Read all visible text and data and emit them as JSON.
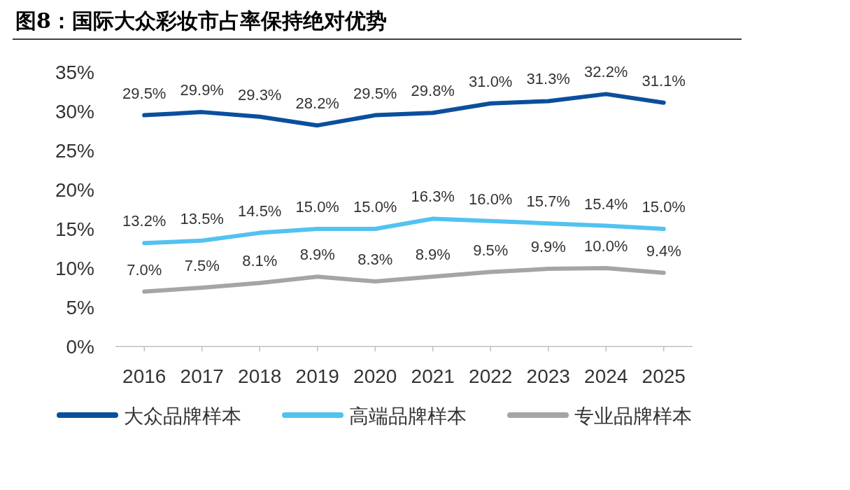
{
  "chart_data": {
    "type": "line",
    "title": "图8：国际大众彩妆市占率保持绝对优势",
    "categories": [
      "2016",
      "2017",
      "2018",
      "2019",
      "2020",
      "2021",
      "2022",
      "2023",
      "2024",
      "2025"
    ],
    "series": [
      {
        "name": "大众品牌样本",
        "color": "#0b4f9c",
        "values": [
          29.5,
          29.9,
          29.3,
          28.2,
          29.5,
          29.8,
          31.0,
          31.3,
          32.2,
          31.1
        ],
        "value_labels": [
          "29.5%",
          "29.9%",
          "29.3%",
          "28.2%",
          "29.5%",
          "29.8%",
          "31.0%",
          "31.3%",
          "32.2%",
          "31.1%"
        ]
      },
      {
        "name": "高端品牌样本",
        "color": "#52c2f0",
        "values": [
          13.2,
          13.5,
          14.5,
          15.0,
          15.0,
          16.3,
          16.0,
          15.7,
          15.4,
          15.0
        ],
        "value_labels": [
          "13.2%",
          "13.5%",
          "14.5%",
          "15.0%",
          "15.0%",
          "16.3%",
          "16.0%",
          "15.7%",
          "15.4%",
          "15.0%"
        ]
      },
      {
        "name": "专业品牌样本",
        "color": "#a5a5a5",
        "values": [
          7.0,
          7.5,
          8.1,
          8.9,
          8.3,
          8.9,
          9.5,
          9.9,
          10.0,
          9.4
        ],
        "value_labels": [
          "7.0%",
          "7.5%",
          "8.1%",
          "8.9%",
          "8.3%",
          "8.9%",
          "9.5%",
          "9.9%",
          "10.0%",
          "9.4%"
        ]
      }
    ],
    "ylim": [
      0,
      35
    ],
    "yticks": [
      {
        "value": 0,
        "label": "0%"
      },
      {
        "value": 5,
        "label": "5%"
      },
      {
        "value": 10,
        "label": "10%"
      },
      {
        "value": 15,
        "label": "15%"
      },
      {
        "value": 20,
        "label": "20%"
      },
      {
        "value": 25,
        "label": "25%"
      },
      {
        "value": 30,
        "label": "30%"
      },
      {
        "value": 35,
        "label": "35%"
      }
    ],
    "grid": false,
    "legend": "bottom",
    "marker": "none",
    "line_style": "solid"
  }
}
